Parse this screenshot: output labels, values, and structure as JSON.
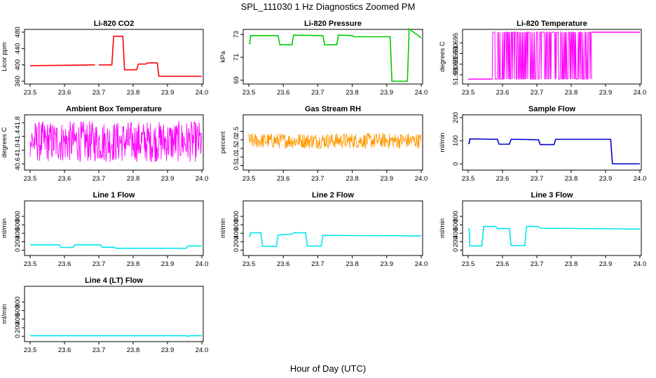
{
  "figure_title": "SPL_111030  1 Hz Diagnostics Zoomed PM",
  "xlabel": "Hour of Day (UTC)",
  "chart_data": [
    {
      "type": "line",
      "title": "Li-820 CO2",
      "ylabel": "Licor ppm",
      "color": "#ff0000",
      "xlim": [
        23.5,
        24.0
      ],
      "ylim": [
        360,
        480
      ],
      "xticks": [
        "23.5",
        "23.6",
        "23.7",
        "23.8",
        "23.9",
        "24.0"
      ],
      "yticks": [
        "360",
        "400",
        "440",
        "480"
      ],
      "segments": [
        {
          "x": [
            23.5,
            23.6,
            23.689
          ],
          "y": [
            398,
            399,
            400
          ]
        },
        {
          "x": [
            23.7,
            23.738,
            23.743,
            23.77,
            23.775,
            23.81,
            23.815,
            23.838,
            23.84
          ],
          "y": [
            400,
            400,
            470,
            470,
            388,
            388,
            402,
            402,
            405
          ]
        },
        {
          "x": [
            23.84,
            23.87,
            23.875,
            23.9,
            23.96,
            24.0
          ],
          "y": [
            405,
            405,
            372,
            372,
            372,
            372
          ]
        }
      ]
    },
    {
      "type": "line",
      "title": "Li-820 Pressure",
      "ylabel": "kPa",
      "color": "#00cc00",
      "xlim": [
        23.5,
        24.0
      ],
      "ylim": [
        68.9,
        73.2
      ],
      "xticks": [
        "23.5",
        "23.6",
        "23.7",
        "23.8",
        "23.9",
        "24.0"
      ],
      "yticks": [
        "69",
        "71",
        "73"
      ],
      "segments": [
        {
          "x": [
            23.5,
            23.503,
            23.505,
            23.585,
            23.59,
            23.625,
            23.63,
            23.715,
            23.72,
            23.755,
            23.76,
            23.8,
            23.805,
            23.91,
            23.915,
            23.96,
            23.965,
            24.0
          ],
          "y": [
            72.2,
            72.2,
            72.9,
            72.9,
            72.1,
            72.1,
            72.95,
            72.9,
            72.1,
            72.1,
            72.95,
            72.9,
            72.8,
            72.8,
            68.9,
            68.9,
            73.5,
            72.7
          ]
        }
      ]
    },
    {
      "type": "line",
      "title": "Li-820 Temperature",
      "ylabel": "degrees C",
      "color": "#ff00ff",
      "xlim": [
        23.5,
        24.0
      ],
      "ylim": [
        51.677,
        51.7
      ],
      "xticks": [
        "23.5",
        "23.6",
        "23.7",
        "23.8",
        "23.9",
        "24.0"
      ],
      "yticks": [
        "51.680",
        "51.685",
        "51.690",
        "51.695"
      ],
      "baseline": 51.678,
      "high": 51.7,
      "segments": [
        {
          "x": [
            23.5,
            23.57
          ],
          "y": [
            51.678,
            51.678
          ]
        },
        {
          "x": [
            23.86,
            24.0
          ],
          "y": [
            51.7,
            51.7
          ]
        }
      ]
    },
    {
      "type": "line",
      "title": "Ambient Box Temperature",
      "ylabel": "degrees C",
      "color": "#ff00ff",
      "xlim": [
        23.5,
        24.0
      ],
      "ylim": [
        40.5,
        41.95
      ],
      "xticks": [
        "23.5",
        "23.6",
        "23.7",
        "23.8",
        "23.9",
        "24.0"
      ],
      "yticks": [
        "40.6",
        "41.0",
        "41.4",
        "41.8"
      ],
      "noise": {
        "mean": 41.2,
        "range": [
          40.65,
          41.85
        ]
      }
    },
    {
      "type": "line",
      "title": "Gas Stream RH",
      "ylabel": "percent",
      "color": "#ff9900",
      "xlim": [
        23.5,
        24.0
      ],
      "ylim": [
        0.4,
        3.3
      ],
      "xticks": [
        "23.5",
        "23.6",
        "23.7",
        "23.8",
        "23.9",
        "24.0"
      ],
      "yticks": [
        "0.5",
        "1.0",
        "1.5",
        "2.0",
        "2.5"
      ],
      "noise": {
        "mean": 1.95,
        "range": [
          1.5,
          2.4
        ]
      }
    },
    {
      "type": "line",
      "title": "Sample Flow",
      "ylabel": "ml/min",
      "color": "#0000cc",
      "xlim": [
        23.5,
        24.0
      ],
      "ylim": [
        -15,
        200
      ],
      "xticks": [
        "23.5",
        "23.6",
        "23.7",
        "23.8",
        "23.9",
        "24.0"
      ],
      "yticks": [
        "0",
        "100",
        "200"
      ],
      "segments": [
        {
          "x": [
            23.5,
            23.503,
            23.505,
            23.585,
            23.59,
            23.62,
            23.625,
            23.705,
            23.71,
            23.75,
            23.755,
            23.915,
            23.92,
            24.0
          ],
          "y": [
            88,
            88,
            108,
            106,
            85,
            85,
            106,
            104,
            83,
            83,
            106,
            106,
            0,
            0
          ]
        }
      ]
    },
    {
      "type": "line",
      "title": "Line 1 Flow",
      "ylabel": "ml/min",
      "color": "#00e5ee",
      "xlim": [
        23.5,
        24.0
      ],
      "ylim": [
        -60,
        1100
      ],
      "xticks": [
        "23.5",
        "23.6",
        "23.7",
        "23.8",
        "23.9",
        "24.0"
      ],
      "yticks": [
        "0",
        "200",
        "400",
        "600",
        "800"
      ],
      "segments": [
        {
          "x": [
            23.5,
            23.585,
            23.59,
            23.625,
            23.63,
            23.705,
            23.71,
            23.745,
            23.75,
            23.955,
            23.96,
            24.0
          ],
          "y": [
            125,
            125,
            65,
            65,
            125,
            125,
            70,
            70,
            45,
            45,
            100,
            100
          ]
        }
      ]
    },
    {
      "type": "line",
      "title": "Line 2 Flow",
      "ylabel": "ml/min",
      "color": "#00e5ee",
      "xlim": [
        23.5,
        24.0
      ],
      "ylim": [
        -60,
        1100
      ],
      "xticks": [
        "23.5",
        "23.6",
        "23.7",
        "23.8",
        "23.9",
        "24.0"
      ],
      "yticks": [
        "0",
        "200",
        "400",
        "600",
        "800"
      ],
      "segments": [
        {
          "x": [
            23.5,
            23.503,
            23.505,
            23.535,
            23.54,
            23.58,
            23.585,
            23.625,
            23.63,
            23.665,
            23.67,
            23.71,
            23.715,
            24.0
          ],
          "y": [
            330,
            330,
            410,
            410,
            90,
            90,
            360,
            380,
            410,
            410,
            95,
            95,
            350,
            340
          ]
        }
      ]
    },
    {
      "type": "line",
      "title": "Line 3 Flow",
      "ylabel": "ml/min",
      "color": "#00e5ee",
      "xlim": [
        23.5,
        24.0
      ],
      "ylim": [
        -60,
        1100
      ],
      "xticks": [
        "23.5",
        "23.6",
        "23.7",
        "23.8",
        "23.9",
        "24.0"
      ],
      "yticks": [
        "0",
        "200",
        "400",
        "600",
        "800"
      ],
      "segments": [
        {
          "x": [
            23.5,
            23.503,
            23.505,
            23.54,
            23.545,
            23.58,
            23.585,
            23.62,
            23.625,
            23.665,
            23.67,
            23.705,
            23.71,
            24.0
          ],
          "y": [
            500,
            500,
            100,
            100,
            560,
            560,
            510,
            510,
            110,
            110,
            560,
            560,
            520,
            500
          ]
        }
      ]
    },
    {
      "type": "line",
      "title": "Line 4 (LT) Flow",
      "ylabel": "ml/min",
      "color": "#00e5ee",
      "xlim": [
        23.5,
        24.0
      ],
      "ylim": [
        -60,
        1100
      ],
      "xticks": [
        "23.5",
        "23.6",
        "23.7",
        "23.8",
        "23.9",
        "24.0"
      ],
      "yticks": [
        "0",
        "200",
        "400",
        "600",
        "800"
      ],
      "segments": [
        {
          "x": [
            23.5,
            23.955,
            23.96,
            23.965,
            24.0
          ],
          "y": [
            12,
            12,
            -5,
            12,
            12
          ]
        }
      ]
    }
  ]
}
